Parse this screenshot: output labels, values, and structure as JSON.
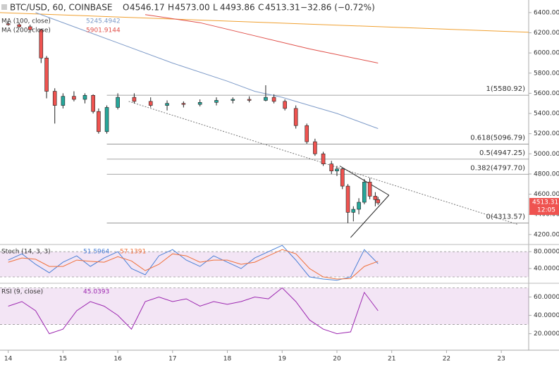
{
  "chart_data": {
    "type": "candlestick",
    "title": "BTC/USD, 60, COINBASE",
    "ohlc_header": [
      {
        "label": "O",
        "value": "4546.17"
      },
      {
        "label": "H",
        "value": "4573.00"
      },
      {
        "label": "L",
        "value": "4493.86"
      },
      {
        "label": "C",
        "value": "4513.31"
      }
    ],
    "change": "−32.86 (−0.72%)",
    "xlim": [
      13.85,
      23.5
    ],
    "xticks": [
      14,
      15,
      16,
      17,
      18,
      19,
      20,
      21,
      22,
      23
    ],
    "ylim": [
      4115,
      6525
    ],
    "yticks": [
      {
        "value": 4200,
        "label": "4200.00"
      },
      {
        "value": 4400,
        "label": "4400.00"
      },
      {
        "value": 4600,
        "label": "4600.00"
      },
      {
        "value": 4800,
        "label": "4800.00"
      },
      {
        "value": 5000,
        "label": "5000.00"
      },
      {
        "value": 5200,
        "label": "5200.00"
      },
      {
        "value": 5400,
        "label": "5400.00"
      },
      {
        "value": 5600,
        "label": "5600.00"
      },
      {
        "value": 5800,
        "label": "5800.00"
      },
      {
        "value": 6000,
        "label": "6000.00"
      },
      {
        "value": 6200,
        "label": "6200.00"
      },
      {
        "value": 6400,
        "label": "6400.00"
      }
    ],
    "up_color": "#26a69a",
    "down_color": "#ef5350",
    "candles": {
      "x": [
        14.0,
        14.2,
        14.4,
        14.6,
        14.7,
        14.85,
        15.0,
        15.2,
        15.4,
        15.55,
        15.65,
        15.8,
        16.0,
        16.3,
        16.6,
        16.9,
        17.2,
        17.5,
        17.8,
        18.1,
        18.4,
        18.7,
        18.85,
        19.05,
        19.25,
        19.45,
        19.6,
        19.75,
        19.9,
        20.0,
        20.1,
        20.2,
        20.3,
        20.4,
        20.5,
        20.6,
        20.7,
        20.75
      ],
      "open": [
        6290,
        6280,
        6260,
        6230,
        5950,
        5620,
        5480,
        5570,
        5540,
        5580,
        5420,
        5220,
        5460,
        5560,
        5520,
        5480,
        5500,
        5490,
        5510,
        5530,
        5540,
        5530,
        5560,
        5520,
        5450,
        5280,
        5120,
        5000,
        4900,
        4830,
        4850,
        4680,
        4420,
        4450,
        4520,
        4720,
        4580,
        4546.17
      ],
      "high": [
        6310,
        6300,
        6280,
        6240,
        5970,
        5650,
        5600,
        5620,
        5600,
        5590,
        5450,
        5480,
        5600,
        5600,
        5560,
        5530,
        5520,
        5540,
        5560,
        5560,
        5570,
        5680,
        5590,
        5540,
        5480,
        5300,
        5150,
        5020,
        4930,
        4880,
        4860,
        4700,
        4480,
        4560,
        4750,
        4760,
        4620,
        4573
      ],
      "low": [
        6270,
        6250,
        6200,
        5900,
        5550,
        5300,
        5450,
        5520,
        5500,
        5400,
        5200,
        5200,
        5440,
        5500,
        5460,
        5430,
        5460,
        5470,
        5480,
        5500,
        5510,
        5520,
        5500,
        5430,
        5250,
        5100,
        4980,
        4880,
        4800,
        4780,
        4650,
        4313,
        4330,
        4400,
        4500,
        4550,
        4480,
        4493.86
      ],
      "close": [
        6280,
        6260,
        6230,
        5950,
        5620,
        5480,
        5570,
        5540,
        5580,
        5420,
        5220,
        5460,
        5560,
        5520,
        5480,
        5500,
        5490,
        5510,
        5530,
        5540,
        5530,
        5560,
        5520,
        5450,
        5280,
        5120,
        5000,
        4900,
        4830,
        4850,
        4680,
        4420,
        4450,
        4520,
        4720,
        4580,
        4546,
        4513.31
      ]
    },
    "moving_averages": [
      {
        "name": "MA (100, close)",
        "last": "5245.4942",
        "color": "#7f9cc9",
        "x": [
          14.5,
          16.0,
          17.0,
          18.0,
          18.5,
          19.0,
          19.5,
          20.0,
          20.75
        ],
        "values": [
          6400,
          6100,
          5900,
          5720,
          5620,
          5560,
          5480,
          5400,
          5250
        ]
      },
      {
        "name": "MA (200, close)",
        "last": "5901.9144",
        "color": "#e0504a",
        "x": [
          16.5,
          17.5,
          18.5,
          19.5,
          20.75
        ],
        "values": [
          6380,
          6300,
          6170,
          6040,
          5900
        ]
      }
    ],
    "lines": [
      {
        "color": "#f0a030",
        "x": [
          13.85,
          23.5
        ],
        "values": [
          6400,
          6205
        ]
      }
    ],
    "fib": {
      "x": [
        15.8,
        23.5
      ],
      "levels": [
        {
          "label": "1(5580.92)",
          "value": 5580.92
        },
        {
          "label": "0.618(5096.79)",
          "value": 5096.79
        },
        {
          "label": "0.5(4947.25)",
          "value": 4947.25
        },
        {
          "label": "0.382(4797.70)",
          "value": 4797.7
        },
        {
          "label": "0(4313.57)",
          "value": 4313.57
        }
      ]
    },
    "trendlines": [
      {
        "dashed": true,
        "x": [
          16.2,
          23.3
        ],
        "values": [
          5520,
          4300
        ]
      },
      {
        "dashed": false,
        "x": [
          20.05,
          20.95
        ],
        "values": [
          4880,
          4590
        ]
      },
      {
        "dashed": false,
        "x": [
          20.25,
          20.95
        ],
        "values": [
          4170,
          4590
        ]
      }
    ],
    "last_price": {
      "value": 4513.31,
      "label": "4513.31"
    },
    "countdown": "12:05",
    "stoch": {
      "title": "Stoch (14, 3, 3)",
      "ylim": [
        5,
        97
      ],
      "yticks": [
        {
          "value": 80,
          "label": "80.0000"
        },
        {
          "value": 40,
          "label": "40.0000"
        }
      ],
      "bands": [
        20,
        80
      ],
      "x": [
        14.0,
        14.25,
        14.5,
        14.75,
        15.0,
        15.25,
        15.5,
        15.75,
        16.0,
        16.25,
        16.5,
        16.75,
        17.0,
        17.25,
        17.5,
        17.75,
        18.0,
        18.25,
        18.5,
        18.75,
        19.0,
        19.25,
        19.5,
        19.75,
        20.0,
        20.25,
        20.5,
        20.75
      ],
      "series": [
        {
          "name": "51.5964",
          "color": "#4a7fd6",
          "values": [
            60,
            75,
            50,
            30,
            55,
            70,
            45,
            65,
            80,
            40,
            25,
            70,
            85,
            60,
            45,
            70,
            55,
            40,
            65,
            80,
            95,
            60,
            20,
            15,
            12,
            20,
            85,
            51.5964
          ]
        },
        {
          "name": "57.1391",
          "color": "#f0703a",
          "values": [
            55,
            65,
            62,
            45,
            45,
            60,
            57,
            55,
            68,
            58,
            35,
            50,
            75,
            70,
            55,
            60,
            60,
            50,
            55,
            70,
            85,
            75,
            40,
            20,
            15,
            16,
            45,
            57.1391
          ]
        }
      ]
    },
    "rsi": {
      "title": "RSI (9, close)",
      "ylim": [
        2,
        75
      ],
      "yticks": [
        {
          "value": 60,
          "label": "60.0000"
        },
        {
          "value": 40,
          "label": "40.0000"
        },
        {
          "value": 20,
          "label": "20.0000"
        }
      ],
      "bands": [
        30,
        70
      ],
      "x": [
        14.0,
        14.25,
        14.5,
        14.75,
        15.0,
        15.25,
        15.5,
        15.75,
        16.0,
        16.25,
        16.5,
        16.75,
        17.0,
        17.25,
        17.5,
        17.75,
        18.0,
        18.25,
        18.5,
        18.75,
        19.0,
        19.25,
        19.5,
        19.75,
        20.0,
        20.25,
        20.5,
        20.75
      ],
      "series": [
        {
          "name": "45.0393",
          "color": "#9c27b0",
          "values": [
            50,
            55,
            45,
            20,
            25,
            45,
            55,
            50,
            40,
            25,
            55,
            60,
            55,
            58,
            50,
            55,
            52,
            55,
            60,
            58,
            70,
            55,
            35,
            25,
            20,
            22,
            65,
            45.0393
          ]
        }
      ]
    }
  }
}
